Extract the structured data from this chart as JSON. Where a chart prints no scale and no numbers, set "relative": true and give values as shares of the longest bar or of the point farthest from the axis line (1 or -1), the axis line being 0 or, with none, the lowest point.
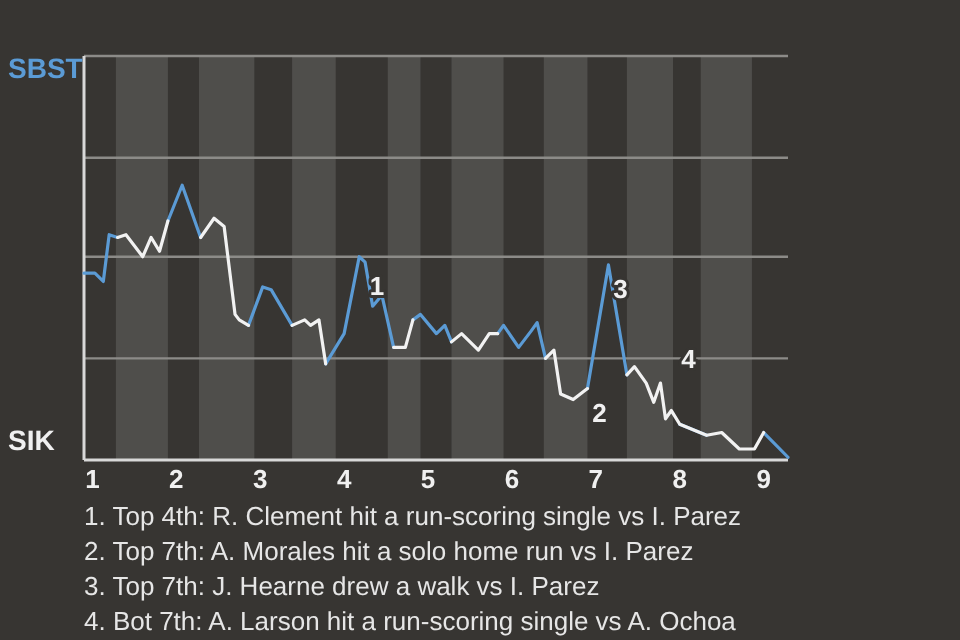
{
  "chart_data": {
    "type": "line",
    "relative": true,
    "x": [
      0.9,
      1.03,
      1.13,
      1.2,
      1.3,
      1.4,
      1.6,
      1.7,
      1.8,
      1.9,
      2.07,
      2.29,
      2.45,
      2.57,
      2.7,
      2.75,
      2.86,
      3.03,
      3.13,
      3.38,
      3.53,
      3.6,
      3.7,
      3.78,
      4.0,
      4.18,
      4.25,
      4.34,
      4.45,
      4.59,
      4.73,
      4.82,
      4.91,
      5.1,
      5.2,
      5.28,
      5.4,
      5.6,
      5.73,
      5.83,
      5.9,
      6.08,
      6.23,
      6.3,
      6.4,
      6.5,
      6.58,
      6.73,
      6.9,
      7.15,
      7.37,
      7.46,
      7.6,
      7.69,
      7.77,
      7.83,
      7.9,
      8.0,
      8.32,
      8.5,
      8.71,
      8.89,
      9.0,
      9.29
    ],
    "series": [
      {
        "color": "#5b9bd5",
        "values": [
          0.68,
          0.68,
          0.65,
          0.82,
          0.81,
          null,
          null,
          null,
          null,
          0.87,
          1,
          0.81,
          null,
          null,
          null,
          null,
          0.49,
          0.63,
          0.62,
          0.49,
          null,
          null,
          null,
          0.35,
          0.46,
          0.74,
          0.72,
          0.56,
          0.6,
          0.41,
          null,
          0.51,
          0.53,
          0.46,
          0.49,
          0.43,
          null,
          null,
          null,
          0.46,
          0.49,
          0.41,
          0.47,
          0.5,
          0.37,
          null,
          null,
          null,
          0.26,
          0.71,
          0.31,
          null,
          null,
          null,
          null,
          null,
          null,
          0.13,
          0.09,
          null,
          null,
          null,
          0.1,
          0.01
        ]
      },
      {
        "color": "#f2f2f2",
        "values": [
          null,
          null,
          null,
          null,
          0.81,
          0.82,
          0.74,
          0.81,
          0.76,
          0.87,
          null,
          0.81,
          0.88,
          0.85,
          0.53,
          0.51,
          0.49,
          null,
          null,
          0.49,
          0.51,
          0.49,
          0.51,
          0.35,
          null,
          null,
          null,
          null,
          null,
          0.41,
          0.41,
          0.51,
          null,
          null,
          null,
          0.43,
          0.46,
          0.4,
          0.46,
          0.46,
          null,
          null,
          null,
          null,
          0.37,
          0.4,
          0.24,
          0.22,
          0.26,
          null,
          0.31,
          0.34,
          0.28,
          0.21,
          0.28,
          0.15,
          0.18,
          0.13,
          0.09,
          0.1,
          0.04,
          0.04,
          0.1,
          null
        ]
      }
    ],
    "xlim": [
      0.9,
      9.29
    ],
    "xticks": [
      1,
      2,
      3,
      4,
      5,
      6,
      7,
      8,
      9
    ],
    "ref_lines": [
      {
        "axis": "y",
        "value": 0.37,
        "color": "#8c8b88"
      },
      {
        "axis": "y",
        "value": 0.74,
        "color": "#8c8b88"
      },
      {
        "axis": "y",
        "value": 1.1,
        "color": "#8c8b88"
      }
    ],
    "bands": [
      {
        "axis": "x",
        "from": 1.28,
        "to": 1.9,
        "color": "#4f4e4b"
      },
      {
        "axis": "x",
        "from": 2.27,
        "to": 2.93,
        "color": "#4f4e4b"
      },
      {
        "axis": "x",
        "from": 3.38,
        "to": 3.9,
        "color": "#4f4e4b"
      },
      {
        "axis": "x",
        "from": 4.52,
        "to": 4.91,
        "color": "#4f4e4b"
      },
      {
        "axis": "x",
        "from": 5.28,
        "to": 5.9,
        "color": "#4f4e4b"
      },
      {
        "axis": "x",
        "from": 6.38,
        "to": 6.9,
        "color": "#4f4e4b"
      },
      {
        "axis": "x",
        "from": 7.37,
        "to": 7.92,
        "color": "#4f4e4b"
      },
      {
        "axis": "x",
        "from": 8.25,
        "to": 8.86,
        "color": "#4f4e4b"
      }
    ],
    "annotations": [
      {
        "text": "1",
        "x": 4.25,
        "y": 0.72
      },
      {
        "text": "2",
        "x": 6.9,
        "y": 0.26
      },
      {
        "text": "3",
        "x": 7.15,
        "y": 0.71
      },
      {
        "text": "4",
        "x": 7.77,
        "y": 0.28
      },
      "SBST",
      "SIK",
      "1. Top 4th: R. Clement hit a run-scoring single vs I. Parez",
      "2. Top 7th: A. Morales hit a solo home run vs I. Parez",
      "3. Top 7th: J. Hearne drew a walk vs I. Parez",
      "4. Bot 7th: A. Larson hit a run-scoring single vs A. Ochoa"
    ]
  }
}
